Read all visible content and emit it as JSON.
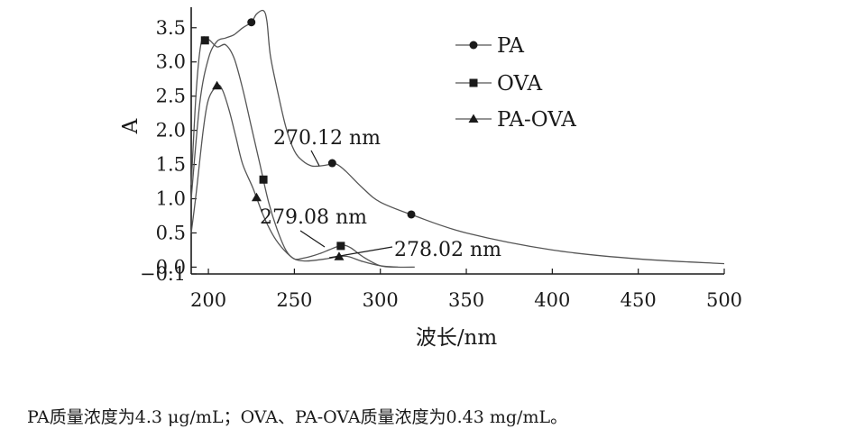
{
  "chart_data": {
    "type": "line",
    "xlabel": "波长/nm",
    "ylabel": "A",
    "xlim": [
      190,
      500
    ],
    "ylim": [
      -0.1,
      3.8
    ],
    "x_ticks": [
      200,
      250,
      300,
      350,
      400,
      450,
      500
    ],
    "y_ticks": [
      -0.1,
      0.0,
      0.5,
      1.0,
      1.5,
      2.0,
      2.5,
      3.0,
      3.5
    ],
    "y_tick_labels": [
      "−0.1",
      "0.0",
      "0.5",
      "1.0",
      "1.5",
      "2.0",
      "2.5",
      "3.0",
      "3.5"
    ],
    "grid": false,
    "legend_position": "top-right",
    "series": [
      {
        "name": "PA",
        "marker": "circle",
        "x": [
          190,
          195,
          200,
          205,
          210,
          215,
          220,
          225,
          228,
          232,
          234,
          236,
          240,
          245,
          250,
          255,
          260,
          265,
          270,
          272,
          275,
          280,
          290,
          300,
          320,
          350,
          400,
          450,
          500
        ],
        "y": [
          1.0,
          2.4,
          3.05,
          3.3,
          3.35,
          3.4,
          3.5,
          3.58,
          3.7,
          3.75,
          3.6,
          3.1,
          2.6,
          2.05,
          1.7,
          1.55,
          1.48,
          1.48,
          1.5,
          1.52,
          1.5,
          1.4,
          1.15,
          0.95,
          0.75,
          0.5,
          0.25,
          0.12,
          0.05
        ],
        "marker_x": [
          225,
          272,
          318
        ]
      },
      {
        "name": "OVA",
        "marker": "square",
        "x": [
          190,
          193,
          196,
          200,
          205,
          210,
          215,
          220,
          225,
          230,
          235,
          240,
          245,
          250,
          255,
          260,
          265,
          270,
          275,
          279,
          283,
          290,
          300,
          310,
          320
        ],
        "y": [
          1.2,
          2.6,
          3.3,
          3.33,
          3.22,
          3.25,
          3.05,
          2.6,
          2.05,
          1.5,
          0.95,
          0.55,
          0.25,
          0.12,
          0.13,
          0.16,
          0.2,
          0.25,
          0.3,
          0.32,
          0.28,
          0.15,
          0.02,
          0.0,
          0.0
        ],
        "marker_x": [
          198,
          232,
          277
        ]
      },
      {
        "name": "PA-OVA",
        "marker": "triangle",
        "x": [
          190,
          193,
          197,
          200,
          205,
          208,
          212,
          216,
          220,
          226,
          232,
          238,
          244,
          250,
          256,
          262,
          268,
          275,
          278,
          282,
          290,
          300,
          310
        ],
        "y": [
          0.5,
          1.1,
          2.0,
          2.45,
          2.65,
          2.6,
          2.3,
          1.9,
          1.5,
          1.15,
          0.75,
          0.45,
          0.25,
          0.12,
          0.09,
          0.1,
          0.12,
          0.15,
          0.16,
          0.15,
          0.08,
          0.02,
          0.0
        ],
        "marker_x": [
          205,
          228,
          276
        ]
      }
    ],
    "annotations": [
      {
        "text": "270.12 nm",
        "x": 270.12
      },
      {
        "text": "279.08 nm",
        "x": 279.08
      },
      {
        "text": "278.02 nm",
        "x": 278.02
      }
    ]
  },
  "caption": "PA质量浓度为4.3 μg/mL；OVA、PA-OVA质量浓度为0.43 mg/mL。"
}
